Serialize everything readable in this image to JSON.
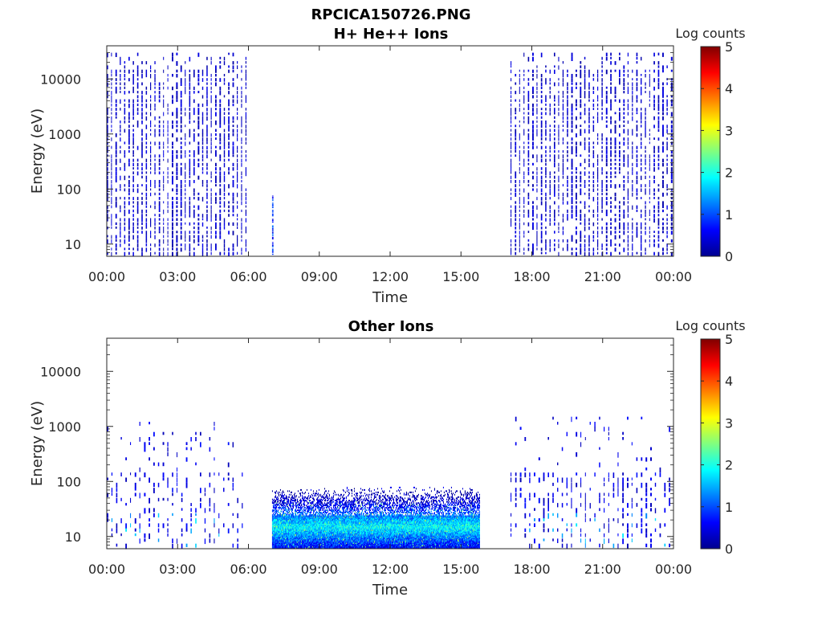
{
  "figure_title": "RPCICA150726.PNG",
  "chart_data": [
    {
      "type": "heatmap",
      "title": "H+ He++ Ions",
      "xlabel": "Time",
      "ylabel": "Energy (eV)",
      "x_ticks": [
        "00:00",
        "03:00",
        "06:00",
        "09:00",
        "12:00",
        "15:00",
        "18:00",
        "21:00",
        "00:00"
      ],
      "x_range_hours": [
        0,
        24
      ],
      "y_ticks": [
        "10",
        "100",
        "1000",
        "10000"
      ],
      "y_range_eV": [
        6,
        40000
      ],
      "y_scale": "log",
      "colorbar": {
        "label": "Log counts",
        "ticks": [
          "0",
          "1",
          "2",
          "3",
          "4",
          "5"
        ],
        "range": [
          0,
          5
        ],
        "colormap": "jet"
      },
      "observations": [
        {
          "start_hour": 0.0,
          "end_hour": 5.9,
          "energy_min_eV": 6,
          "energy_max_eV": 30000,
          "pattern": "vertical stripes",
          "typical_log_counts": 0.3
        },
        {
          "start_hour": 7.0,
          "end_hour": 7.05,
          "energy_min_eV": 6,
          "energy_max_eV": 80,
          "pattern": "single stripe",
          "typical_log_counts": 0.7
        },
        {
          "start_hour": 17.1,
          "end_hour": 23.95,
          "energy_min_eV": 6,
          "energy_max_eV": 30000,
          "pattern": "vertical stripes",
          "typical_log_counts": 0.3
        }
      ]
    },
    {
      "type": "heatmap",
      "title": "Other Ions",
      "xlabel": "Time",
      "ylabel": "Energy (eV)",
      "x_ticks": [
        "00:00",
        "03:00",
        "06:00",
        "09:00",
        "12:00",
        "15:00",
        "18:00",
        "21:00",
        "00:00"
      ],
      "x_range_hours": [
        0,
        24
      ],
      "y_ticks": [
        "10",
        "100",
        "1000",
        "10000"
      ],
      "y_range_eV": [
        6,
        40000
      ],
      "y_scale": "log",
      "colorbar": {
        "label": "Log counts",
        "ticks": [
          "0",
          "1",
          "2",
          "3",
          "4",
          "5"
        ],
        "range": [
          0,
          5
        ],
        "colormap": "jet"
      },
      "observations": [
        {
          "start_hour": 0.0,
          "end_hour": 5.9,
          "energy_min_eV": 6,
          "energy_max_eV": 1500,
          "pattern": "sparse vertical stripes",
          "typical_log_counts": 0.4
        },
        {
          "start_hour": 7.0,
          "end_hour": 15.8,
          "energy_min_eV": 6,
          "energy_max_eV": 80,
          "pattern": "dense band",
          "typical_log_counts": 1.5,
          "peak_log_counts": 2.8,
          "band_center_eV": 15
        },
        {
          "start_hour": 17.1,
          "end_hour": 23.95,
          "energy_min_eV": 6,
          "energy_max_eV": 1500,
          "pattern": "sparse vertical stripes",
          "typical_log_counts": 0.4
        }
      ]
    }
  ],
  "colors": {
    "axis": "#262626",
    "background": "#ffffff"
  }
}
